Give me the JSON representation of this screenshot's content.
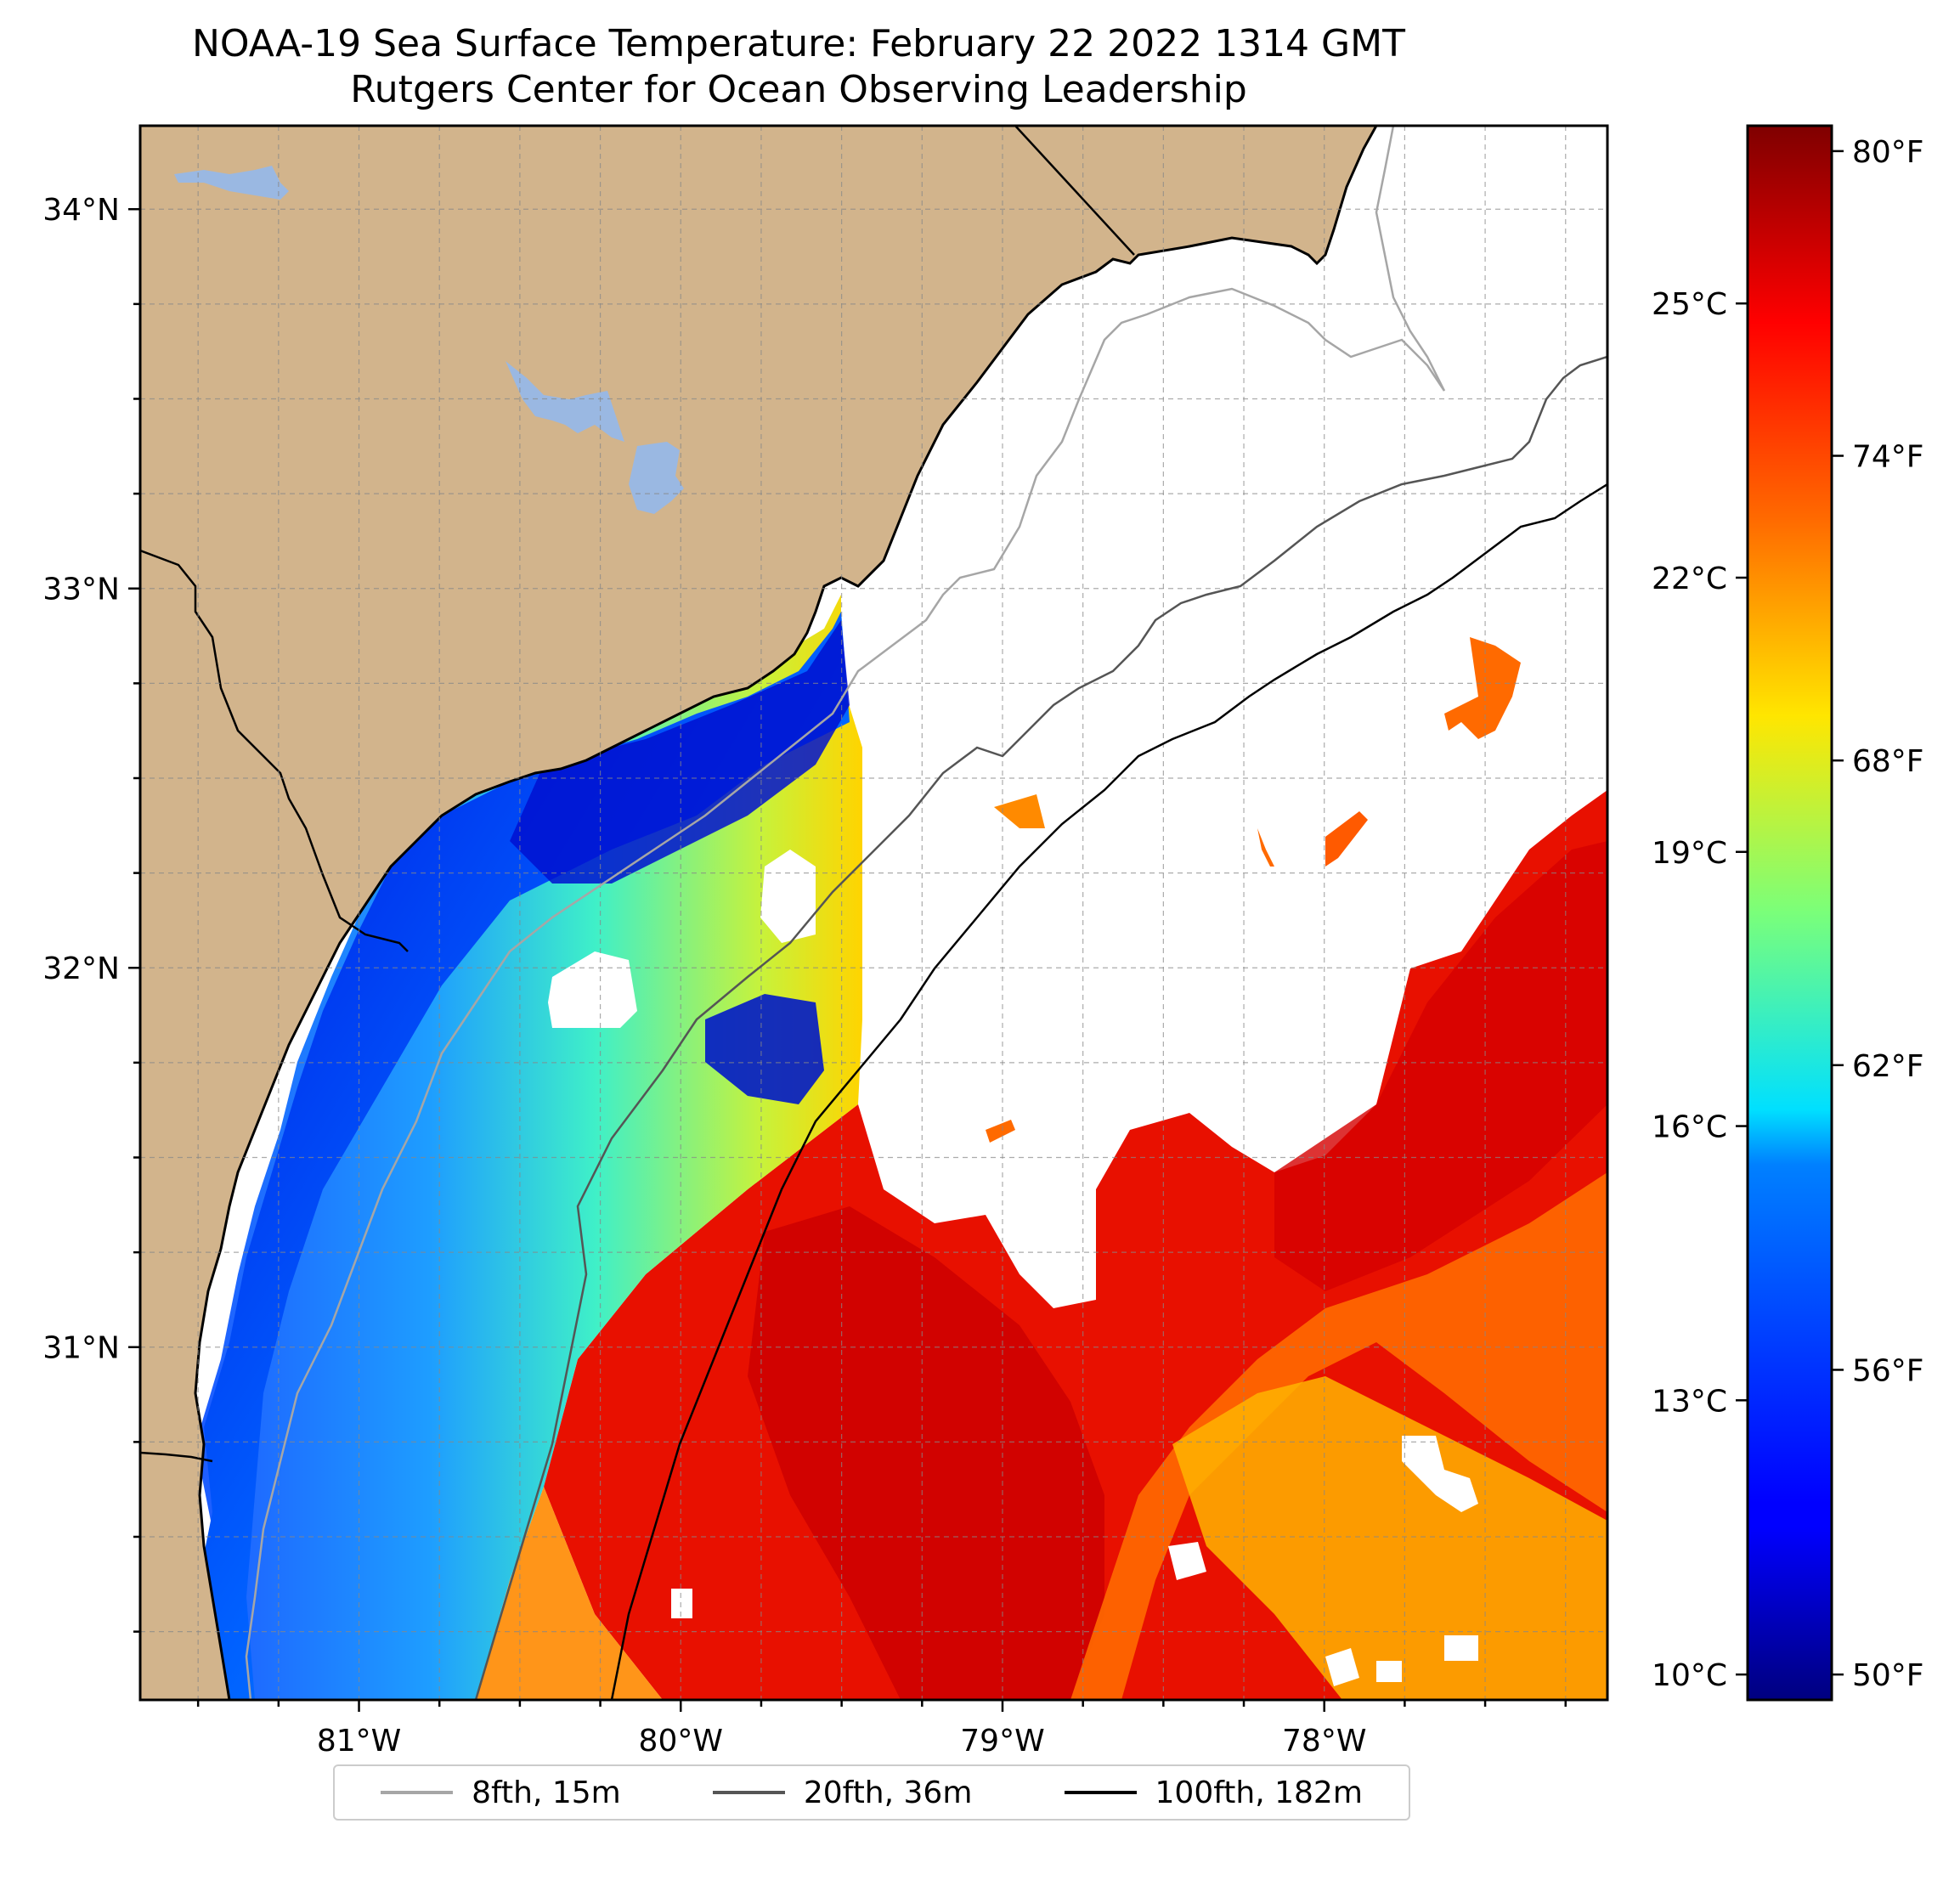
{
  "title": "NOAA-19 Sea Surface Temperature: February 22 2022 1314 GMT",
  "subtitle": "Rutgers Center for Ocean Observing Leadership",
  "map": {
    "lon_range": [
      -81.68,
      -77.12
    ],
    "lat_range": [
      30.07,
      34.22
    ],
    "lat_ticks": [
      {
        "value": 34,
        "label": "34°N"
      },
      {
        "value": 33,
        "label": "33°N"
      },
      {
        "value": 32,
        "label": "32°N"
      },
      {
        "value": 31,
        "label": "31°N"
      }
    ],
    "lon_ticks": [
      {
        "value": -81,
        "label": "81°W"
      },
      {
        "value": -80,
        "label": "80°W"
      },
      {
        "value": -79,
        "label": "79°W"
      },
      {
        "value": -78,
        "label": "78°W"
      }
    ],
    "grid": true,
    "land_color": "#d2b48c",
    "lake_color": "#9ab8e2"
  },
  "colorbar": {
    "colormap": "jet",
    "celsius_ticks": [
      {
        "value": 25,
        "label": "25°C"
      },
      {
        "value": 22,
        "label": "22°C"
      },
      {
        "value": 19,
        "label": "19°C"
      },
      {
        "value": 16,
        "label": "16°C"
      },
      {
        "value": 13,
        "label": "13°C"
      },
      {
        "value": 10,
        "label": "10°C"
      }
    ],
    "fahrenheit_ticks": [
      {
        "value": 80,
        "label": "80°F"
      },
      {
        "value": 74,
        "label": "74°F"
      },
      {
        "value": 68,
        "label": "68°F"
      },
      {
        "value": 62,
        "label": "62°F"
      },
      {
        "value": 56,
        "label": "56°F"
      },
      {
        "value": 50,
        "label": "50°F"
      }
    ]
  },
  "legend": [
    {
      "label": "8fth, 15m",
      "color": "#a6a6a6"
    },
    {
      "label": "20fth, 36m",
      "color": "#555555"
    },
    {
      "label": "100fth, 182m",
      "color": "#000000"
    }
  ]
}
